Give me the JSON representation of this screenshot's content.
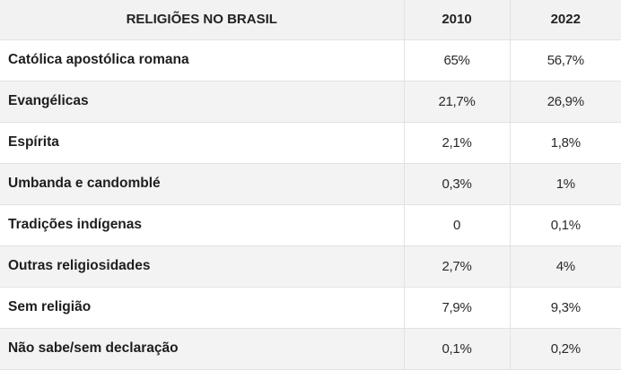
{
  "chart_data": {
    "type": "table",
    "columns": [
      "RELIGIÕES NO BRASIL",
      "2010",
      "2022"
    ],
    "rows": [
      {
        "label": "Católica apostólica romana",
        "v2010": "65%",
        "v2022": "56,7%"
      },
      {
        "label": "Evangélicas",
        "v2010": "21,7%",
        "v2022": "26,9%"
      },
      {
        "label": "Espírita",
        "v2010": "2,1%",
        "v2022": "1,8%"
      },
      {
        "label": "Umbanda e candomblé",
        "v2010": "0,3%",
        "v2022": "1%"
      },
      {
        "label": "Tradições indígenas",
        "v2010": "0",
        "v2022": "0,1%"
      },
      {
        "label": "Outras religiosidades",
        "v2010": "2,7%",
        "v2022": "4%"
      },
      {
        "label": "Sem religião",
        "v2010": "7,9%",
        "v2022": "9,3%"
      },
      {
        "label": "Não sabe/sem declaração",
        "v2010": "0,1%",
        "v2022": "0,2%"
      }
    ]
  }
}
